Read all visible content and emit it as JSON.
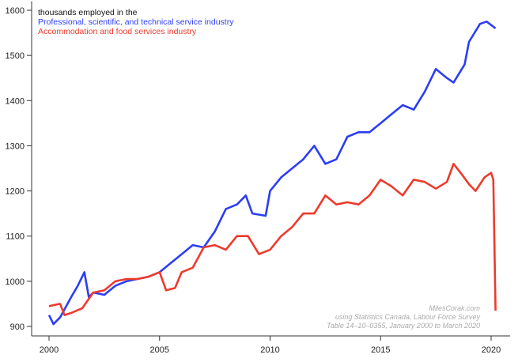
{
  "chart_data": {
    "type": "line",
    "title": "thousands employed in the",
    "xlabel": "",
    "ylabel": "",
    "xlim": [
      1999.2,
      2021.2
    ],
    "ylim": [
      880,
      1620
    ],
    "x_ticks": [
      2000,
      2005,
      2010,
      2015,
      2020
    ],
    "y_ticks": [
      900,
      1000,
      1100,
      1200,
      1300,
      1400,
      1500,
      1600
    ],
    "legend_position": "top-left",
    "annotations": [
      "MilesCorak.com",
      "using Statistics Canada, Labour Force Survey",
      "Table 14–10–0355, January 2000 to March 2020"
    ],
    "series": [
      {
        "name": "Professional, scientific, and technical service industry",
        "color": "#2b3df5",
        "x": [
          2000,
          2000.2,
          2000.5,
          2001,
          2001.3,
          2001.6,
          2001.8,
          2002,
          2002.5,
          2003,
          2003.5,
          2004,
          2004.5,
          2005,
          2005.5,
          2006,
          2006.5,
          2007,
          2007.5,
          2008,
          2008.5,
          2008.9,
          2009.2,
          2009.8,
          2010,
          2010.5,
          2011,
          2011.5,
          2012,
          2012.5,
          2013,
          2013.5,
          2014,
          2014.5,
          2015,
          2015.5,
          2016,
          2016.5,
          2017,
          2017.5,
          2018,
          2018.3,
          2018.8,
          2019,
          2019.5,
          2019.8,
          2020.2
        ],
        "values": [
          925,
          905,
          920,
          965,
          990,
          1020,
          965,
          975,
          970,
          990,
          1000,
          1005,
          1010,
          1020,
          1040,
          1060,
          1080,
          1075,
          1110,
          1160,
          1170,
          1190,
          1150,
          1145,
          1200,
          1230,
          1250,
          1270,
          1300,
          1260,
          1270,
          1320,
          1330,
          1330,
          1350,
          1370,
          1390,
          1380,
          1420,
          1470,
          1450,
          1440,
          1480,
          1530,
          1570,
          1575,
          1560
        ]
      },
      {
        "name": "Accommodation and food services industry",
        "color": "#ee3a2c",
        "x": [
          2000,
          2000.5,
          2000.7,
          2001,
          2001.5,
          2002,
          2002.5,
          2003,
          2003.5,
          2004,
          2004.5,
          2005,
          2005.3,
          2005.7,
          2006,
          2006.5,
          2007,
          2007.5,
          2008,
          2008.5,
          2009,
          2009.5,
          2010,
          2010.5,
          2011,
          2011.5,
          2012,
          2012.5,
          2013,
          2013.5,
          2014,
          2014.5,
          2015,
          2015.5,
          2016,
          2016.5,
          2017,
          2017.5,
          2018,
          2018.3,
          2018.7,
          2019,
          2019.3,
          2019.7,
          2020,
          2020.1,
          2020.2
        ],
        "values": [
          945,
          950,
          925,
          930,
          940,
          975,
          980,
          1000,
          1005,
          1005,
          1010,
          1020,
          980,
          985,
          1020,
          1030,
          1075,
          1080,
          1070,
          1100,
          1100,
          1060,
          1070,
          1100,
          1120,
          1150,
          1150,
          1190,
          1170,
          1175,
          1170,
          1190,
          1225,
          1210,
          1190,
          1225,
          1220,
          1205,
          1220,
          1260,
          1235,
          1215,
          1200,
          1230,
          1240,
          1225,
          935
        ]
      }
    ]
  }
}
